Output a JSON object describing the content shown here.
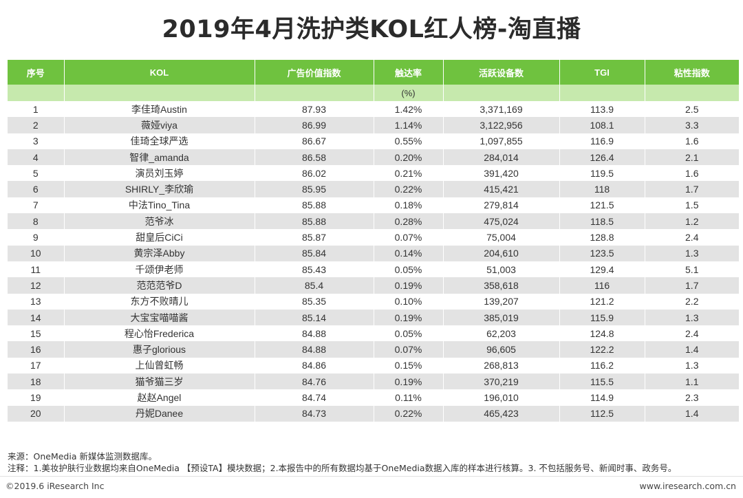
{
  "title": "2019年4月洗护类KOL红人榜-淘直播",
  "table": {
    "headers": [
      "序号",
      "KOL",
      "广告价值指数",
      "触达率",
      "活跃设备数",
      "TGI",
      "粘性指数"
    ],
    "units": [
      "",
      "",
      "",
      "(%)",
      "",
      "",
      ""
    ],
    "rows": [
      [
        "1",
        "李佳琦Austin",
        "87.93",
        "1.42%",
        "3,371,169",
        "113.9",
        "2.5"
      ],
      [
        "2",
        "薇娅viya",
        "86.99",
        "1.14%",
        "3,122,956",
        "108.1",
        "3.3"
      ],
      [
        "3",
        "佳琦全球严选",
        "86.67",
        "0.55%",
        "1,097,855",
        "116.9",
        "1.6"
      ],
      [
        "4",
        "智律_amanda",
        "86.58",
        "0.20%",
        "284,014",
        "126.4",
        "2.1"
      ],
      [
        "5",
        "演员刘玉婷",
        "86.02",
        "0.21%",
        "391,420",
        "119.5",
        "1.6"
      ],
      [
        "6",
        "SHIRLY_李欣瑜",
        "85.95",
        "0.22%",
        "415,421",
        "118",
        "1.7"
      ],
      [
        "7",
        "中法Tino_Tina",
        "85.88",
        "0.18%",
        "279,814",
        "121.5",
        "1.5"
      ],
      [
        "8",
        "范爷冰",
        "85.88",
        "0.28%",
        "475,024",
        "118.5",
        "1.2"
      ],
      [
        "9",
        "甜皇后CiCi",
        "85.87",
        "0.07%",
        "75,004",
        "128.8",
        "2.4"
      ],
      [
        "10",
        "黄宗泽Abby",
        "85.84",
        "0.14%",
        "204,610",
        "123.5",
        "1.3"
      ],
      [
        "11",
        "千颂伊老师",
        "85.43",
        "0.05%",
        "51,003",
        "129.4",
        "5.1"
      ],
      [
        "12",
        "范范范爷D",
        "85.4",
        "0.19%",
        "358,618",
        "116",
        "1.7"
      ],
      [
        "13",
        "东方不败晴儿",
        "85.35",
        "0.10%",
        "139,207",
        "121.2",
        "2.2"
      ],
      [
        "14",
        "大宝宝喵喵酱",
        "85.14",
        "0.19%",
        "385,019",
        "115.9",
        "1.3"
      ],
      [
        "15",
        "程心怡Frederica",
        "84.88",
        "0.05%",
        "62,203",
        "124.8",
        "2.4"
      ],
      [
        "16",
        "惠子glorious",
        "84.88",
        "0.07%",
        "96,605",
        "122.2",
        "1.4"
      ],
      [
        "17",
        "上仙曾虹畅",
        "84.86",
        "0.15%",
        "268,813",
        "116.2",
        "1.3"
      ],
      [
        "18",
        "猫爷猫三岁",
        "84.76",
        "0.19%",
        "370,219",
        "115.5",
        "1.1"
      ],
      [
        "19",
        "赵赵Angel",
        "84.74",
        "0.11%",
        "196,010",
        "114.9",
        "2.3"
      ],
      [
        "20",
        "丹妮Danee",
        "84.73",
        "0.22%",
        "465,423",
        "112.5",
        "1.4"
      ]
    ]
  },
  "notes": {
    "source": "来源：OneMedia 新媒体监测数据库。",
    "remark": "注释：1.美妆护肤行业数据均来自OneMedia 【预设TA】模块数据；2.本报告中的所有数据均基于OneMedia数据入库的样本进行核算。3. 不包括服务号、新闻时事、政务号。"
  },
  "footer": {
    "copyright": "©2019.6 iResearch Inc",
    "website": "www.iresearch.com.cn"
  },
  "colors": {
    "header_green": "#6fc23f",
    "unit_row_green": "#c6e9ad",
    "stripe_gray": "#e3e3e3"
  }
}
